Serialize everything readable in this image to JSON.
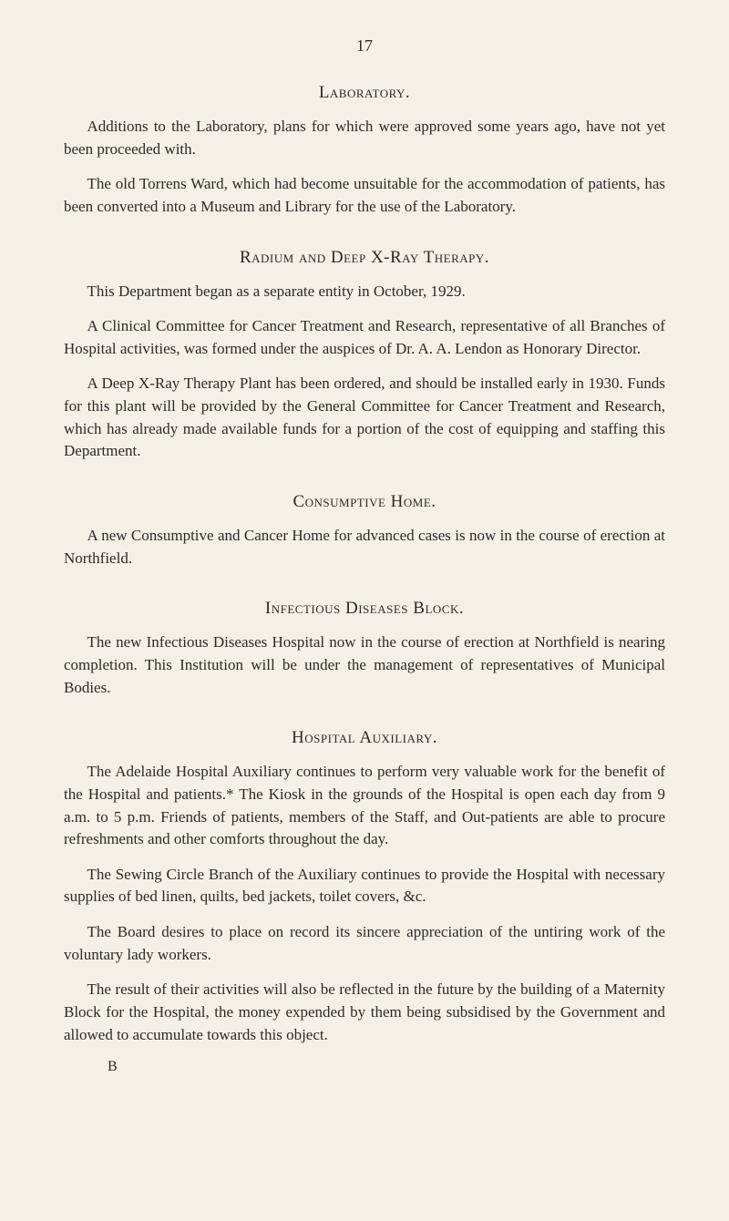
{
  "page_number": "17",
  "sections": {
    "laboratory": {
      "heading": "Laboratory.",
      "p1": "Additions to the Laboratory, plans for which were approved some years ago, have not yet been proceeded with.",
      "p2": "The old Torrens Ward, which had become unsuitable for the accommodation of patients, has been converted into a Museum and Library for the use of the Laboratory."
    },
    "radium": {
      "heading": "Radium and Deep X-Ray Therapy.",
      "p1": "This Department began as a separate entity in October, 1929.",
      "p2": "A Clinical Committee for Cancer Treatment and Research, representative of all Branches of Hospital activities, was formed under the auspices of Dr. A. A. Lendon as Honorary Director.",
      "p3": "A Deep X-Ray Therapy Plant has been ordered, and should be installed early in 1930. Funds for this plant will be provided by the General Committee for Cancer Treatment and Research, which has already made available funds for a portion of the cost of equipping and staffing this Department."
    },
    "consumptive": {
      "heading": "Consumptive Home.",
      "p1": "A new Consumptive and Cancer Home for advanced cases is now in the course of erection at Northfield."
    },
    "infectious": {
      "heading": "Infectious Diseases Block.",
      "p1": "The new Infectious Diseases Hospital now in the course of erection at Northfield is nearing completion. This Institution will be under the management of representatives of Municipal Bodies."
    },
    "hospital_aux": {
      "heading": "Hospital Auxiliary.",
      "p1": "The Adelaide Hospital Auxiliary continues to perform very valuable work for the benefit of the Hospital and patients.* The Kiosk in the grounds of the Hospital is open each day from 9 a.m. to 5 p.m. Friends of patients, members of the Staff, and Out-patients are able to procure refreshments and other comforts throughout the day.",
      "p2": "The Sewing Circle Branch of the Auxiliary continues to provide the Hospital with necessary supplies of bed linen, quilts, bed jackets, toilet covers, &c.",
      "p3": "The Board desires to place on record its sincere appreciation of the untiring work of the voluntary lady workers.",
      "p4": "The result of their activities will also be reflected in the future by the building of a Maternity Block for the Hospital, the money expended by them being subsidised by the Government and allowed to accumulate towards this object."
    }
  },
  "footer_mark": "B",
  "colors": {
    "background": "#f5f0e6",
    "text": "#2a2a2a"
  },
  "typography": {
    "body_fontsize": 17,
    "heading_fontsize": 19,
    "line_height": 1.45,
    "font_family": "Georgia, Times New Roman, serif"
  }
}
